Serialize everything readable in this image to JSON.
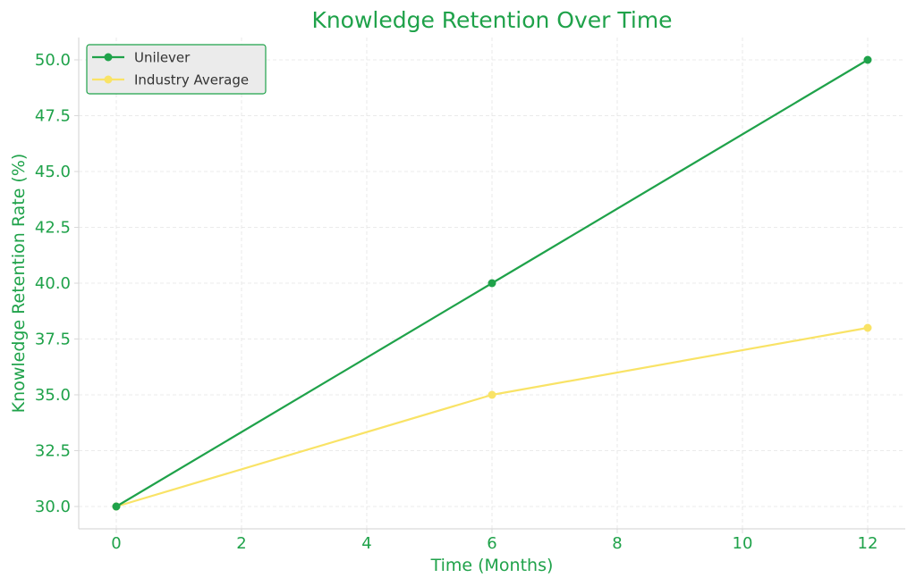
{
  "colors": {
    "accent": "#1fa24a",
    "unilever": "#1fa24a",
    "industry": "#f9e366",
    "grid": "#e5e5e5",
    "axis": "#d9d9d9",
    "legend_bg": "#ebebeb",
    "legend_border": "#1fa24a",
    "legend_text": "#333333"
  },
  "chart_data": {
    "type": "line",
    "title": "Knowledge Retention Over Time",
    "xlabel": "Time (Months)",
    "ylabel": "Knowledge Retention Rate (%)",
    "x": [
      0,
      6,
      12
    ],
    "xlim": [
      -0.6,
      12.6
    ],
    "ylim": [
      29.0,
      51.0
    ],
    "xticks": [
      0,
      2,
      4,
      6,
      8,
      10,
      12
    ],
    "xtick_labels": [
      "0",
      "2",
      "4",
      "6",
      "8",
      "10",
      "12"
    ],
    "yticks": [
      30.0,
      32.5,
      35.0,
      37.5,
      40.0,
      42.5,
      45.0,
      47.5,
      50.0
    ],
    "ytick_labels": [
      "30.0",
      "32.5",
      "35.0",
      "37.5",
      "40.0",
      "42.5",
      "45.0",
      "47.5",
      "50.0"
    ],
    "grid": true,
    "legend_position": "top-left",
    "series": [
      {
        "name": "Unilever",
        "values": [
          30,
          40,
          50
        ],
        "color": "#1fa24a",
        "marker": "circle"
      },
      {
        "name": "Industry Average",
        "values": [
          30,
          35,
          38
        ],
        "color": "#f9e366",
        "marker": "circle"
      }
    ]
  }
}
